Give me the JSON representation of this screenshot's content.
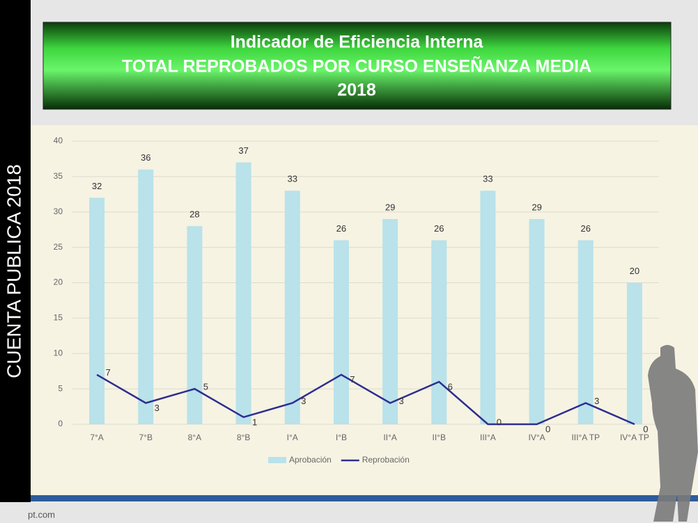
{
  "side_label": "CUENTA PUBLICA 2018",
  "footer": "pt.com",
  "chart_data": {
    "type": "bar",
    "title": [
      "Indicador de Eficiencia Interna",
      "TOTAL REPROBADOS POR CURSO ENSEÑANZA MEDIA",
      "2018"
    ],
    "categories": [
      "7°A",
      "7°B",
      "8°A",
      "8°B",
      "I°A",
      "I°B",
      "II°A",
      "II°B",
      "III°A",
      "IV°A",
      "III°A TP",
      "IV°A TP"
    ],
    "series": [
      {
        "name": "Aprobación",
        "type": "bar",
        "color": "#b9e2ea",
        "values": [
          32,
          36,
          28,
          37,
          33,
          26,
          29,
          26,
          33,
          29,
          26,
          20
        ]
      },
      {
        "name": "Reprobación",
        "type": "line",
        "color": "#2e2e8f",
        "values": [
          7,
          3,
          5,
          1,
          3,
          7,
          3,
          6,
          0,
          0,
          3,
          0
        ]
      }
    ],
    "ylim": [
      0,
      40
    ],
    "yticks": [
      0,
      5,
      10,
      15,
      20,
      25,
      30,
      35,
      40
    ],
    "grid": true,
    "legend": "bottom"
  }
}
